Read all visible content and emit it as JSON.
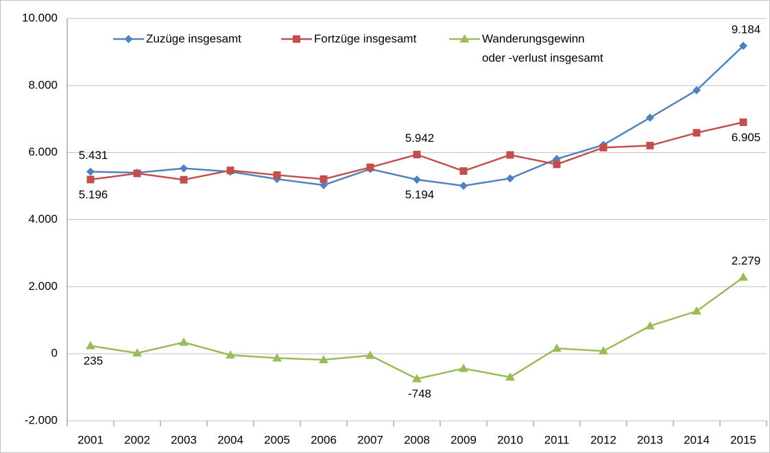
{
  "chart_data": {
    "type": "line",
    "categories": [
      "2001",
      "2002",
      "2003",
      "2004",
      "2005",
      "2006",
      "2007",
      "2008",
      "2009",
      "2010",
      "2011",
      "2012",
      "2013",
      "2014",
      "2015"
    ],
    "series": [
      {
        "name": "Zuzüge insgesamt",
        "color": "#4f81bd",
        "marker": "diamond",
        "values": [
          5431,
          5400,
          5530,
          5430,
          5210,
          5030,
          5510,
          5194,
          5010,
          5230,
          5810,
          6230,
          7040,
          7860,
          9184
        ],
        "value_labels": [
          "5.431",
          null,
          null,
          null,
          null,
          null,
          null,
          "5.194",
          null,
          null,
          null,
          null,
          null,
          null,
          "9.184"
        ]
      },
      {
        "name": "Fortzüge insgesamt",
        "color": "#c0504d",
        "marker": "square",
        "values": [
          5196,
          5380,
          5190,
          5470,
          5330,
          5210,
          5560,
          5942,
          5450,
          5930,
          5650,
          6150,
          6210,
          6590,
          6905
        ],
        "value_labels": [
          "5.196",
          null,
          null,
          null,
          null,
          null,
          null,
          "5.942",
          null,
          null,
          null,
          null,
          null,
          null,
          "6.905"
        ]
      },
      {
        "name": "Wanderungsgewinn\noder -verlust insgesamt",
        "color": "#9bbb59",
        "marker": "triangle",
        "values": [
          235,
          20,
          340,
          -40,
          -130,
          -180,
          -50,
          -748,
          -440,
          -700,
          160,
          80,
          830,
          1270,
          2279
        ],
        "value_labels": [
          "235",
          null,
          null,
          null,
          null,
          null,
          null,
          "-748",
          null,
          null,
          null,
          null,
          null,
          null,
          "2.279"
        ]
      }
    ],
    "ylim": [
      -2000,
      10000
    ],
    "yticks": [
      {
        "value": -2000,
        "label": "-2.000"
      },
      0,
      {
        "value": 2000,
        "label": "2.000"
      },
      {
        "value": 4000,
        "label": "4.000"
      },
      {
        "value": 6000,
        "label": "6.000"
      },
      {
        "value": 8000,
        "label": "8.000"
      },
      {
        "value": 10000,
        "label": "10.000"
      }
    ],
    "grid": true,
    "legend": "top"
  }
}
